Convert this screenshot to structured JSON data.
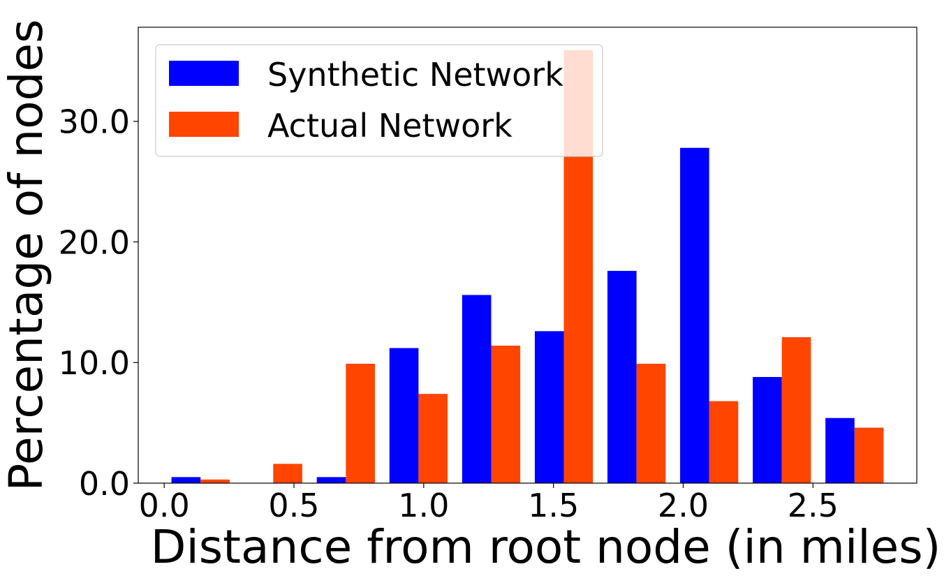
{
  "chart_data": {
    "type": "bar",
    "title": "",
    "xlabel": "Distance from root node (in miles)",
    "ylabel": "Percentage of nodes",
    "xlim": [
      -0.1,
      2.9
    ],
    "ylim": [
      0,
      37.8
    ],
    "x_ticks": [
      {
        "value": 0.0,
        "label": "0.0"
      },
      {
        "value": 0.5,
        "label": "0.5"
      },
      {
        "value": 1.0,
        "label": "1.0"
      },
      {
        "value": 1.5,
        "label": "1.5"
      },
      {
        "value": 2.0,
        "label": "2.0"
      },
      {
        "value": 2.5,
        "label": "2.5"
      }
    ],
    "y_ticks": [
      {
        "value": 0,
        "label": "0.0"
      },
      {
        "value": 10,
        "label": "10.0"
      },
      {
        "value": 20,
        "label": "20.0"
      },
      {
        "value": 30,
        "label": "30.0"
      }
    ],
    "bin_width": 0.28,
    "bar_width": 0.112,
    "bin_centers": [
      0.14,
      0.42,
      0.7,
      0.98,
      1.26,
      1.54,
      1.82,
      2.1,
      2.38,
      2.66
    ],
    "grid": false,
    "legend": {
      "position": "top-left"
    },
    "series": [
      {
        "name": "Synthetic Network",
        "color": "#0000ff",
        "values": [
          0.5,
          0.0,
          0.5,
          11.2,
          15.6,
          12.6,
          17.6,
          27.8,
          8.8,
          5.4
        ]
      },
      {
        "name": "Actual Network",
        "color": "#ff4500",
        "values": [
          0.3,
          1.6,
          9.9,
          7.4,
          11.4,
          35.9,
          9.9,
          6.8,
          12.1,
          4.6
        ]
      }
    ]
  }
}
